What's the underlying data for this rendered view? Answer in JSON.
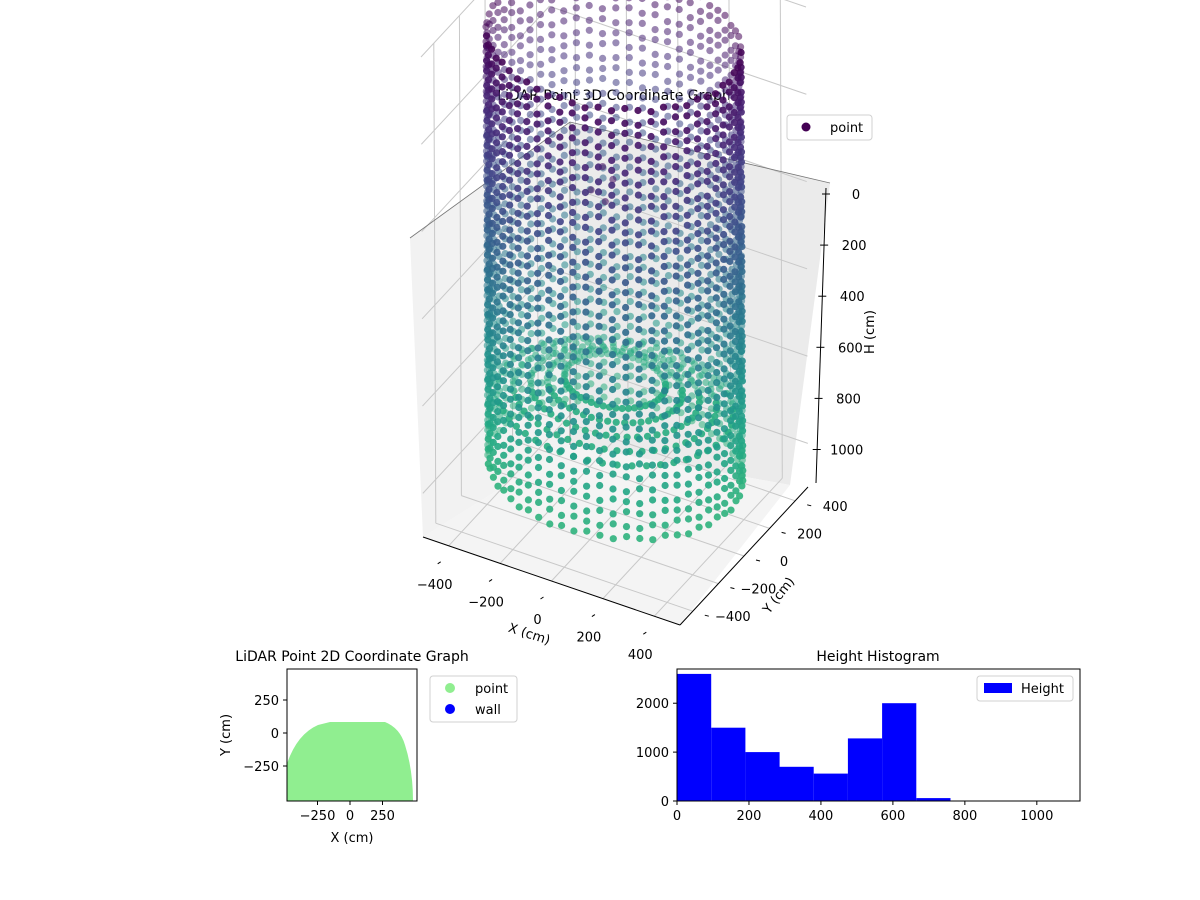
{
  "chart_data": [
    {
      "type": "scatter3d",
      "title": "LiDAR Point 3D Coordinate Graph",
      "xlabel": "X (cm)",
      "ylabel": "Y (cm)",
      "zlabel": "H (cm)",
      "xlim": [
        -500,
        500
      ],
      "ylim": [
        -500,
        500
      ],
      "zlim": [
        1100,
        0
      ],
      "x_ticks": [
        "−400",
        "−200",
        "0",
        "200",
        "400"
      ],
      "y_ticks": [
        "−400",
        "−200",
        "0",
        "200",
        "400"
      ],
      "z_ticks": [
        "0",
        "200",
        "400",
        "600",
        "800",
        "1000"
      ],
      "legend": [
        {
          "name": "point",
          "color": "#440154"
        }
      ],
      "legend_position": "top-right",
      "grid": true,
      "colormap": "viridis",
      "shape": {
        "wall_radius_x": 450,
        "wall_radius_y": 420,
        "wall_height_range": [
          0,
          650
        ],
        "inner_floor_height": [
          700,
          900
        ]
      }
    },
    {
      "type": "scatter",
      "title": "LiDAR Point 2D Coordinate Graph",
      "xlabel": "X (cm)",
      "ylabel": "Y (cm)",
      "xlim": [
        -500,
        500
      ],
      "ylim": [
        -500,
        500
      ],
      "x_ticks": [
        "−250",
        "0",
        "250"
      ],
      "y_ticks": [
        "250",
        "0",
        "−250"
      ],
      "legend": [
        {
          "name": "point",
          "color": "#90ee90"
        },
        {
          "name": "wall",
          "color": "#0000ff"
        }
      ],
      "legend_position": "outside-right",
      "region": {
        "center_y": -400,
        "radius": 500,
        "top_y": 90
      }
    },
    {
      "type": "bar",
      "title": "Height Histogram",
      "xlim": [
        0,
        1120
      ],
      "ylim": [
        0,
        2700
      ],
      "x_ticks": [
        "0",
        "200",
        "400",
        "600",
        "800",
        "1000"
      ],
      "y_ticks": [
        "0",
        "1000",
        "2000"
      ],
      "bin_edges": [
        0,
        95,
        190,
        285,
        380,
        475,
        570,
        665,
        760,
        855,
        950,
        1045,
        1120
      ],
      "series": [
        {
          "name": "Height",
          "color": "#0000ff",
          "values": [
            2600,
            1500,
            1000,
            700,
            560,
            1280,
            2000,
            60,
            3,
            0,
            0,
            0
          ]
        }
      ],
      "legend_position": "top-right"
    }
  ]
}
